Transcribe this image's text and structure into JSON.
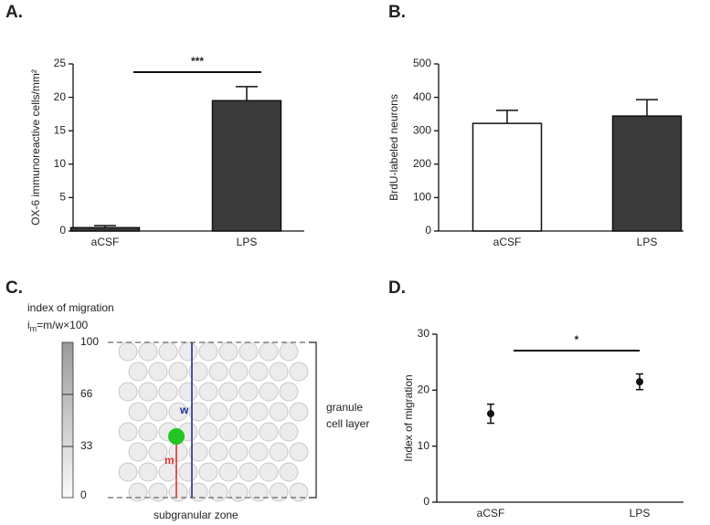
{
  "chart_data": [
    {
      "panel_label": "A.",
      "type": "bar",
      "ylabel": "OX-6 immunoreactive cells/mm²",
      "categories": [
        "aCSF",
        "LPS"
      ],
      "values": [
        0.5,
        19.5
      ],
      "errors": [
        0.3,
        2.1
      ],
      "colors": [
        "#3a3a3a",
        "#3a3a3a"
      ],
      "ylim": [
        0,
        25
      ],
      "yticks": [
        0,
        5,
        10,
        15,
        20,
        25
      ],
      "annotation": "***"
    },
    {
      "panel_label": "B.",
      "type": "bar",
      "ylabel": "BrdU-labeled neurons",
      "categories": [
        "aCSF",
        "LPS"
      ],
      "values": [
        322,
        344
      ],
      "errors": [
        39,
        49
      ],
      "colors": [
        "#ffffff",
        "#3a3a3a"
      ],
      "ylim": [
        0,
        500
      ],
      "yticks": [
        0,
        100,
        200,
        300,
        400,
        500
      ]
    },
    {
      "panel_label": "D.",
      "type": "dot",
      "ylabel": "Index of migration",
      "categories": [
        "aCSF",
        "LPS"
      ],
      "values": [
        15.8,
        21.5
      ],
      "errors": [
        1.7,
        1.4
      ],
      "colors": [
        "#111111",
        "#111111"
      ],
      "ylim": [
        0,
        30
      ],
      "yticks": [
        0,
        10,
        20,
        30
      ],
      "annotation": "*"
    }
  ],
  "diagram": {
    "panel_label": "C.",
    "title": "index of migration",
    "formula": {
      "base": "i",
      "sub": "m",
      "rest": "=m/w×100"
    },
    "scale_labels": [
      "100",
      "66",
      "33",
      "0"
    ],
    "w_label": "w",
    "m_label": "m",
    "layer_label": [
      "granule",
      "cell layer"
    ],
    "zone_label": "subgranular zone"
  }
}
